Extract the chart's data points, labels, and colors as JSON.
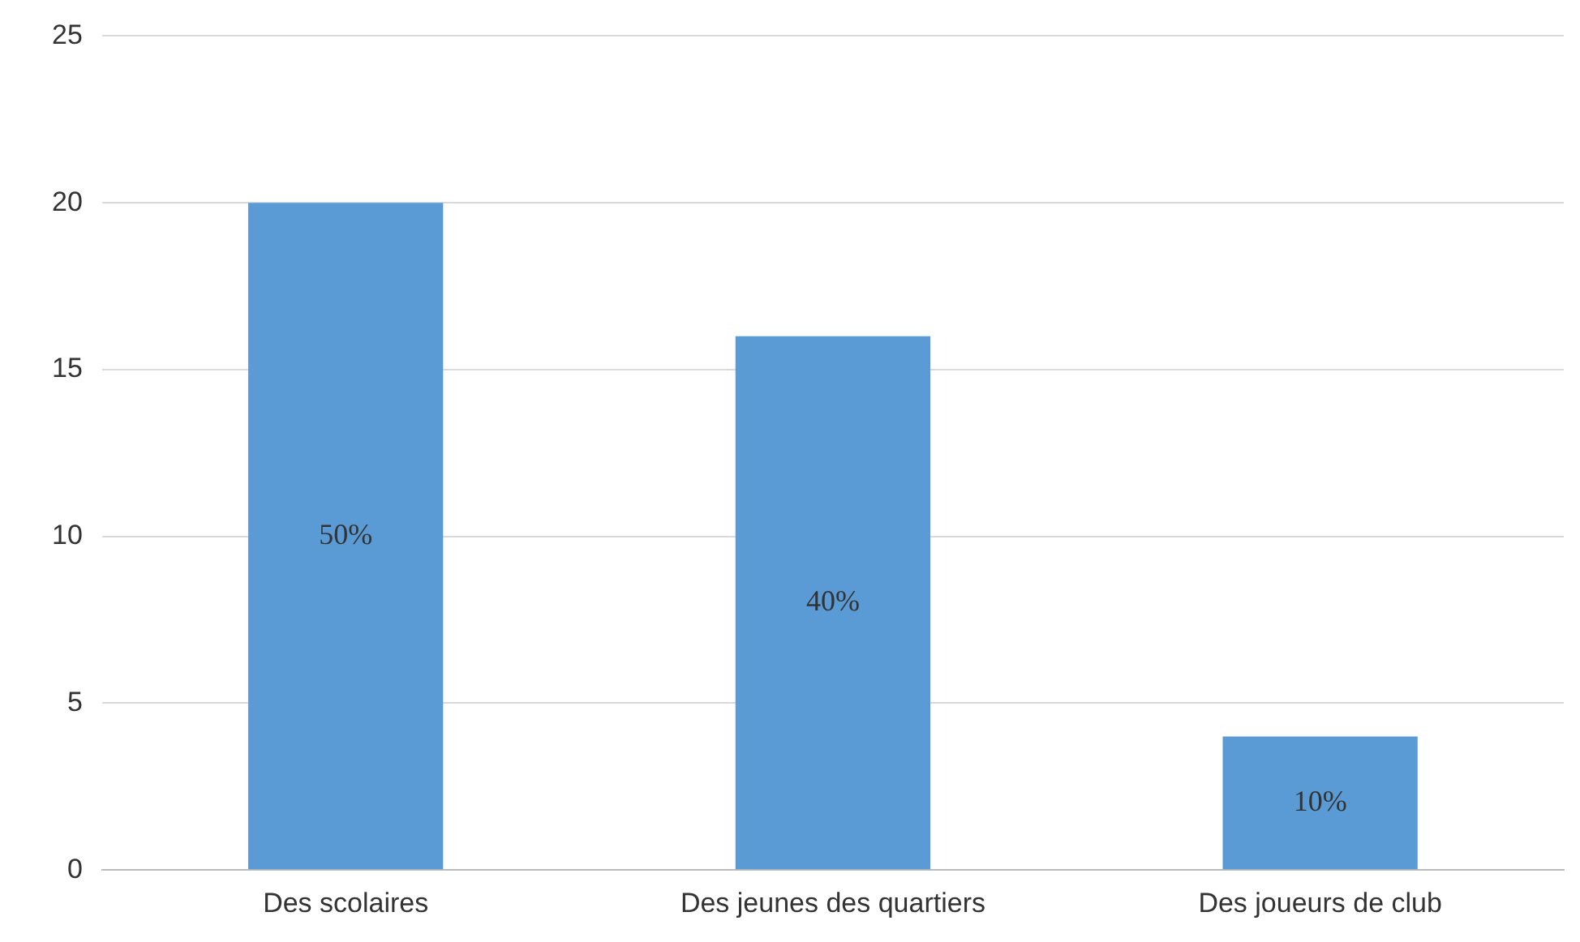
{
  "chart_data": {
    "type": "bar",
    "categories": [
      "Des scolaires",
      "Des jeunes des quartiers",
      "Des joueurs de club"
    ],
    "values": [
      20,
      16,
      4
    ],
    "color": "#5b9bd5",
    "annotations": [
      "50%",
      "40%",
      "10%"
    ],
    "ylim": [
      0,
      25
    ],
    "yticks": [
      0,
      5,
      10,
      15,
      20,
      25
    ],
    "grid": "y",
    "legend": false
  }
}
